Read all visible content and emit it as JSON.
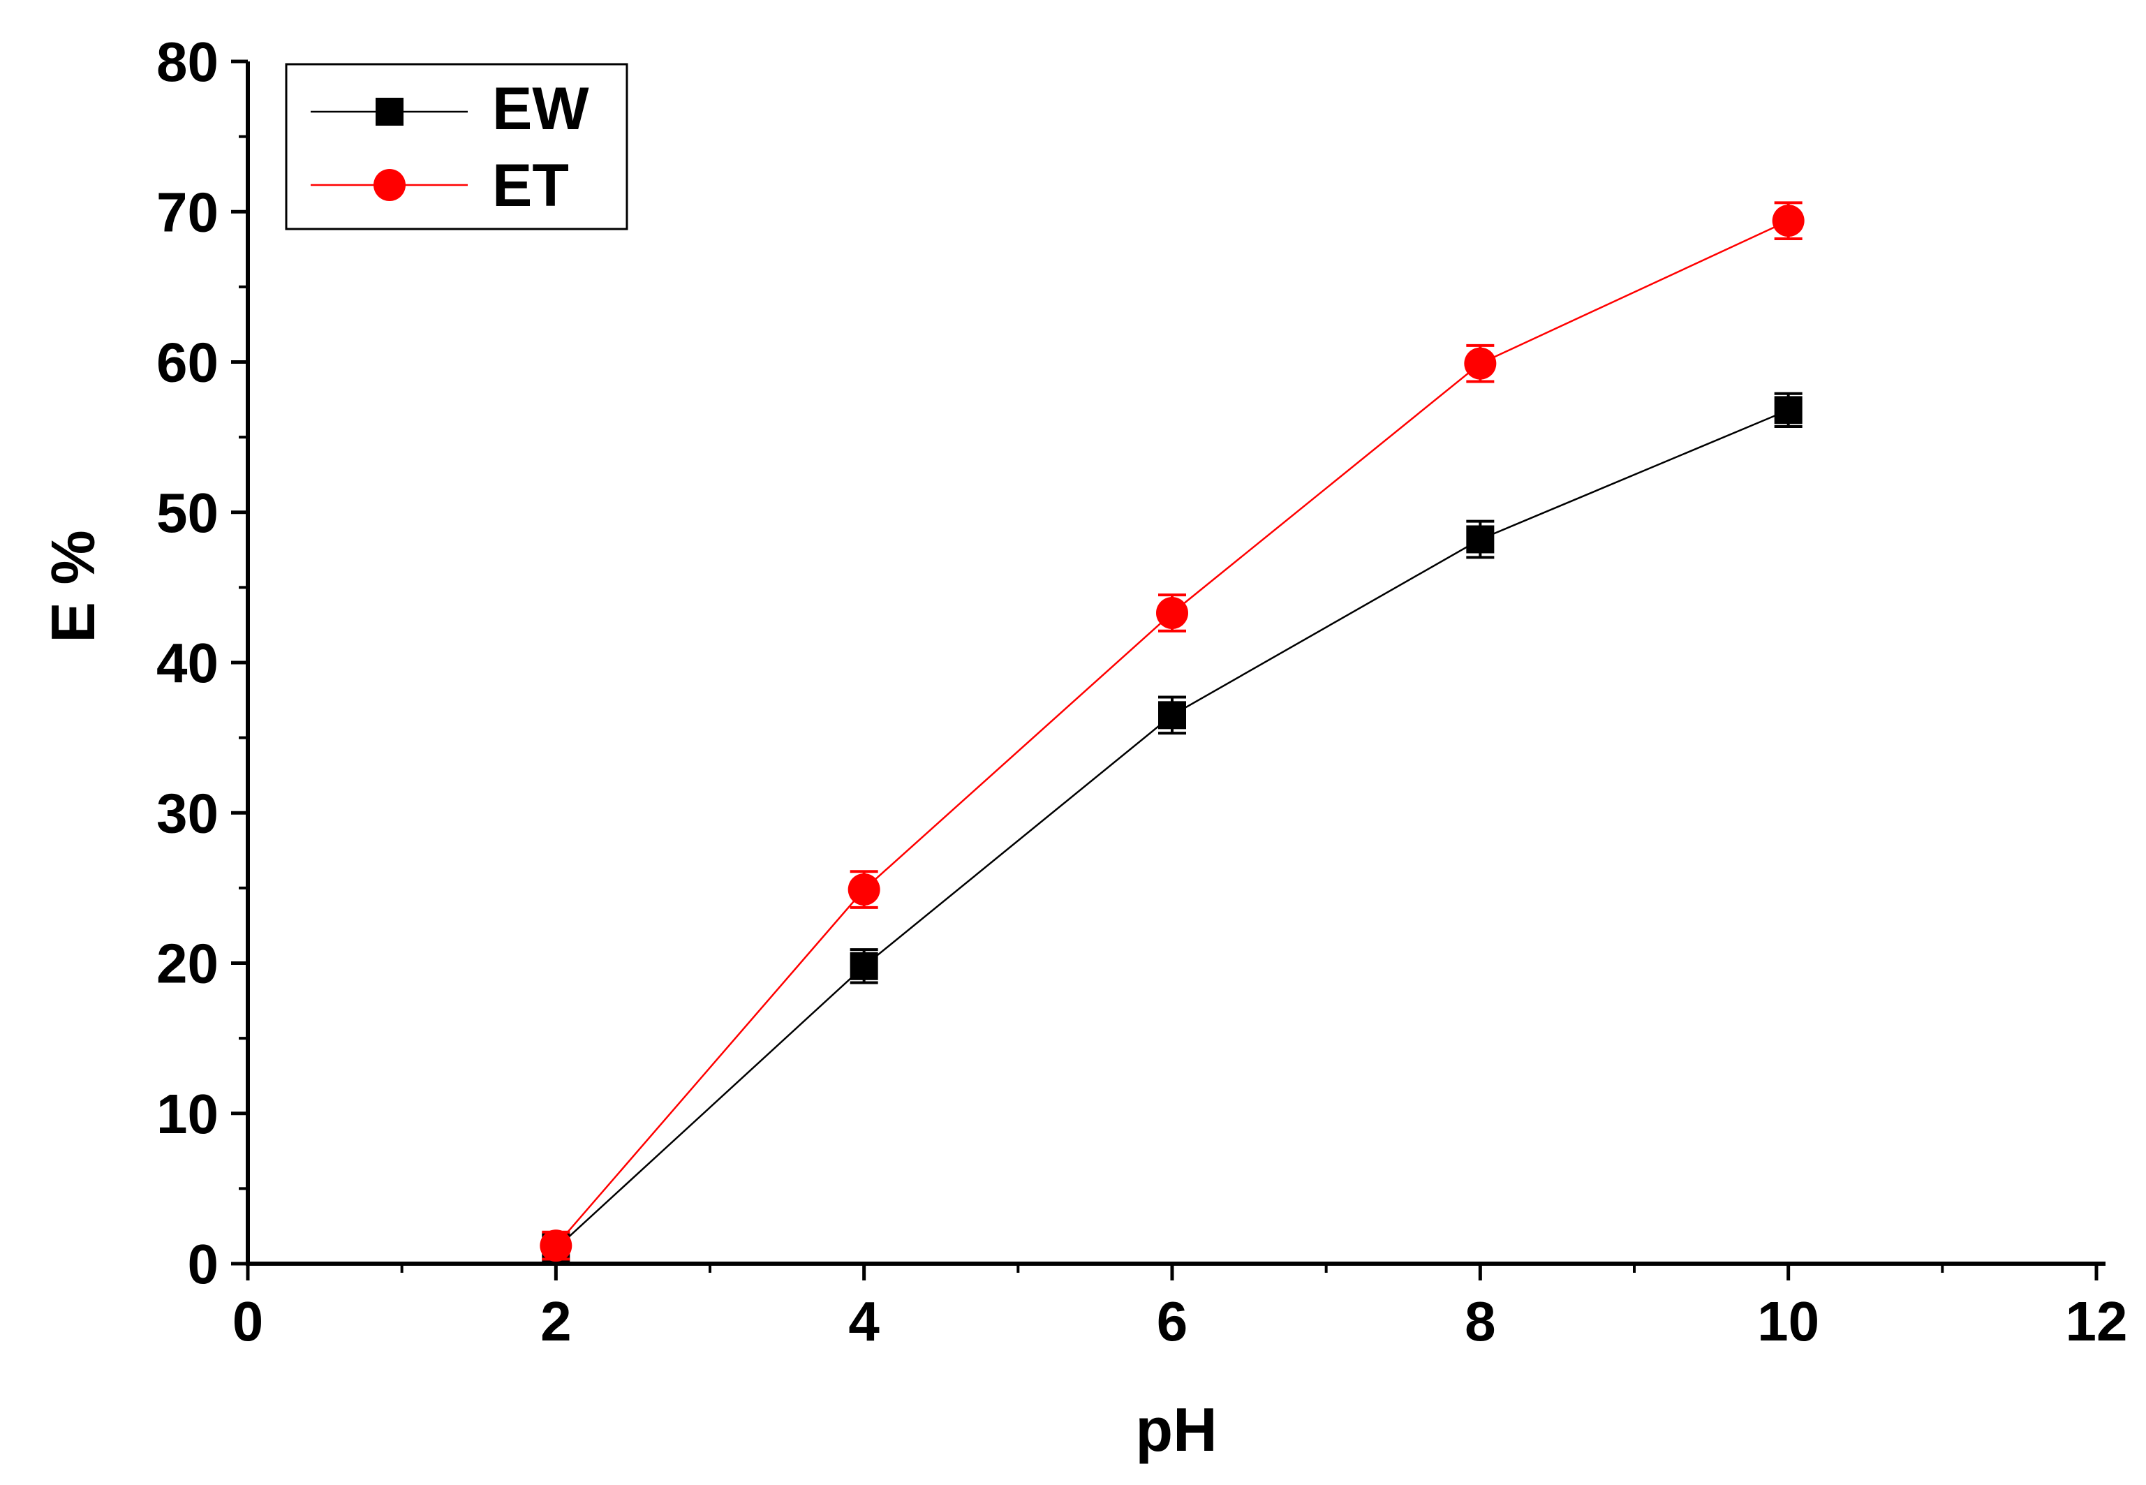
{
  "chart_data": {
    "type": "line",
    "title": "",
    "xlabel": "pH",
    "ylabel": "E %",
    "xlim": [
      0,
      12
    ],
    "ylim": [
      0,
      80
    ],
    "x_ticks": [
      "0",
      "2",
      "4",
      "6",
      "8",
      "10",
      "12"
    ],
    "y_ticks": [
      "0",
      "10",
      "20",
      "30",
      "40",
      "50",
      "60",
      "70",
      "80"
    ],
    "grid": false,
    "legend_position": "top-left",
    "series": [
      {
        "name": "EW",
        "color": "#000000",
        "marker": "square",
        "x": [
          2,
          4,
          6,
          8,
          10
        ],
        "y": [
          1.0,
          19.8,
          36.5,
          48.2,
          56.8
        ],
        "error": [
          1.0,
          1.1,
          1.2,
          1.2,
          1.1
        ]
      },
      {
        "name": "ET",
        "color": "#ff0000",
        "marker": "circle",
        "x": [
          2,
          4,
          6,
          8,
          10
        ],
        "y": [
          1.2,
          24.9,
          43.3,
          59.9,
          69.4
        ],
        "error": [
          0.9,
          1.2,
          1.2,
          1.2,
          1.2
        ]
      }
    ]
  }
}
